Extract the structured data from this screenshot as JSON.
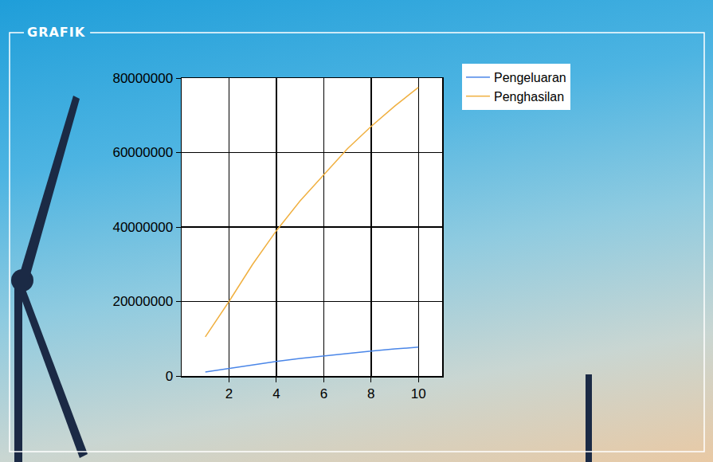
{
  "panel": {
    "title": "GRAFIK"
  },
  "chart_data": {
    "type": "line",
    "x": [
      1,
      2,
      3,
      4,
      5,
      6,
      7,
      8,
      9,
      10
    ],
    "series": [
      {
        "name": "Pengeluaran",
        "color": "#4a86e8",
        "values": [
          1050000,
          2000000,
          3000000,
          3900000,
          4700000,
          5400000,
          6100000,
          6700000,
          7250000,
          7750000
        ]
      },
      {
        "name": "Penghasilan",
        "color": "#f0b040",
        "values": [
          10500000,
          20000000,
          30000000,
          39000000,
          47000000,
          54000000,
          61000000,
          67000000,
          72500000,
          77500000
        ]
      }
    ],
    "xlim": [
      0,
      11
    ],
    "xticks": [
      2,
      4,
      6,
      8,
      10
    ],
    "ylim": [
      0,
      80000000
    ],
    "yticks": [
      0,
      20000000,
      40000000,
      60000000,
      80000000
    ],
    "grid": true,
    "legend": "top right"
  }
}
